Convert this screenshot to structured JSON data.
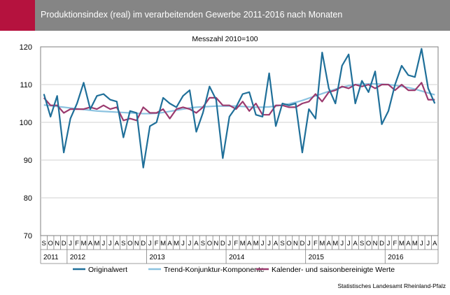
{
  "header": {
    "title": "Produktionsindex (real) im verarbeitenden Gewerbe 2011-2016 nach Monaten",
    "accent_color": "#b5123e",
    "bar_color": "#858585"
  },
  "source": "Statistisches Landesamt Rheinland-Pfalz",
  "chart_data": {
    "type": "line",
    "title": "",
    "subtitle": "Messzahl 2010=100",
    "xlabel": "",
    "ylabel": "",
    "ylim": [
      70,
      120
    ],
    "yticks": [
      70,
      80,
      90,
      100,
      110,
      120
    ],
    "grid": true,
    "legend_position": "bottom",
    "categories": [
      "S",
      "O",
      "N",
      "D",
      "J",
      "F",
      "M",
      "A",
      "M",
      "J",
      "J",
      "A",
      "S",
      "O",
      "N",
      "D",
      "J",
      "F",
      "M",
      "A",
      "M",
      "J",
      "J",
      "A",
      "S",
      "O",
      "N",
      "D",
      "J",
      "F",
      "M",
      "A",
      "M",
      "J",
      "J",
      "A",
      "S",
      "O",
      "N",
      "D",
      "J",
      "F",
      "M",
      "A",
      "M",
      "J",
      "J",
      "A",
      "S",
      "O",
      "N",
      "D",
      "J",
      "F",
      "M",
      "A",
      "M",
      "J",
      "J",
      "A"
    ],
    "years": [
      {
        "label": "2011",
        "count": 4
      },
      {
        "label": "2012",
        "count": 12
      },
      {
        "label": "2013",
        "count": 12
      },
      {
        "label": "2014",
        "count": 12
      },
      {
        "label": "2015",
        "count": 12
      },
      {
        "label": "2016",
        "count": 8
      }
    ],
    "series": [
      {
        "name": "Originalwert",
        "color": "#1f6f99",
        "values": [
          107.5,
          101.5,
          107,
          92,
          101,
          105,
          110.5,
          103.5,
          107,
          107.5,
          106,
          105.5,
          96,
          103,
          102.5,
          88,
          99,
          100,
          106.5,
          105,
          104,
          107,
          108.5,
          97.5,
          102.5,
          109.5,
          106,
          90.5,
          101.5,
          104,
          107.5,
          108,
          102,
          101.5,
          113,
          99,
          105,
          104.5,
          105,
          92,
          103.5,
          101,
          118.5,
          109,
          105,
          115,
          118,
          105,
          111,
          108,
          113.5,
          99.5,
          103,
          110,
          115,
          112.5,
          112,
          119.5,
          109,
          105
        ]
      },
      {
        "name": "Trend-Konjunktur-Komponente",
        "color": "#8cc3e0",
        "values": [
          104.6,
          104.4,
          104.2,
          104,
          103.8,
          103.6,
          103.4,
          103.2,
          103,
          102.9,
          102.8,
          102.7,
          102.6,
          102.5,
          102.4,
          102.3,
          102.3,
          102.4,
          102.6,
          102.9,
          103.2,
          103.5,
          103.8,
          104,
          104.1,
          104.2,
          104.3,
          104.3,
          104.3,
          104.3,
          104.2,
          104.1,
          104,
          104,
          104.1,
          104.3,
          104.6,
          104.9,
          105.3,
          105.8,
          106.4,
          107,
          107.6,
          108.2,
          108.8,
          109.3,
          109.7,
          110,
          110.1,
          110.2,
          110.2,
          110.1,
          110,
          109.8,
          109.5,
          109.2,
          108.8,
          108.3,
          107.8,
          107.3
        ]
      },
      {
        "name": "Kalender- und saisonbereinigte Werte",
        "color": "#9b3a6e",
        "values": [
          106.5,
          104.5,
          104.5,
          102.5,
          103.5,
          103.5,
          103.5,
          104,
          103.5,
          104.5,
          103.5,
          104,
          100.5,
          101,
          100.5,
          104,
          102.5,
          102.5,
          103.5,
          101,
          103.5,
          104,
          103.5,
          102.5,
          104,
          106.5,
          106.5,
          104.5,
          104.5,
          103.5,
          105.5,
          103,
          105,
          102,
          102,
          104.5,
          104.5,
          104,
          104,
          105,
          105.5,
          107.5,
          105.5,
          108,
          108.5,
          109.5,
          109,
          110,
          109.5,
          110,
          109,
          110,
          110,
          108.5,
          110,
          108.5,
          108.5,
          110.5,
          106,
          106
        ]
      }
    ]
  }
}
